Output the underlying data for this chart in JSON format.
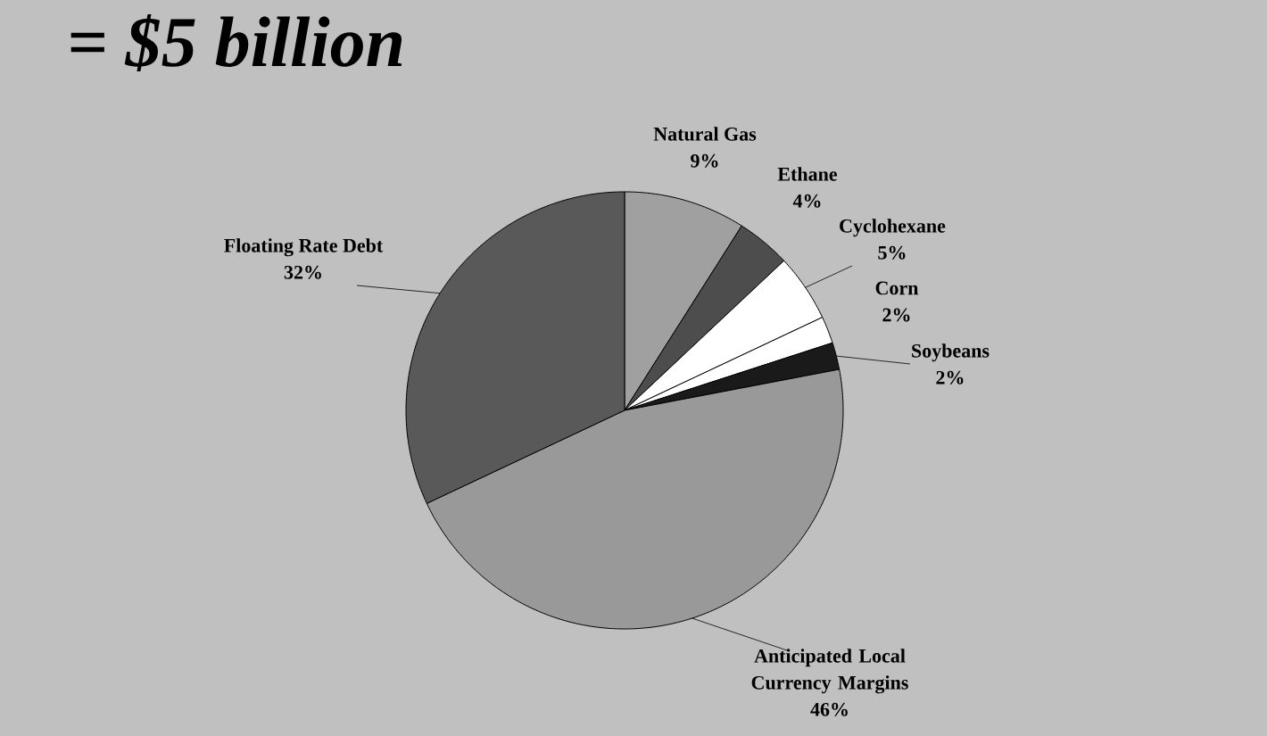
{
  "chart_data": {
    "type": "pie",
    "title": "= $5 billion",
    "categories": [
      "Natural Gas",
      "Ethane",
      "Cyclohexane",
      "Corn",
      "Soybeans",
      "Anticipated Local Currency Margins",
      "Floating Rate Debt"
    ],
    "values": [
      9,
      4,
      5,
      2,
      2,
      46,
      32
    ],
    "value_labels": [
      "9%",
      "4%",
      "5%",
      "2%",
      "2%",
      "46%",
      "32%"
    ],
    "colors": [
      "#a0a0a0",
      "#4d4d4d",
      "#ffffff",
      "#ffffff",
      "#1a1a1a",
      "#999999",
      "#595959"
    ]
  }
}
